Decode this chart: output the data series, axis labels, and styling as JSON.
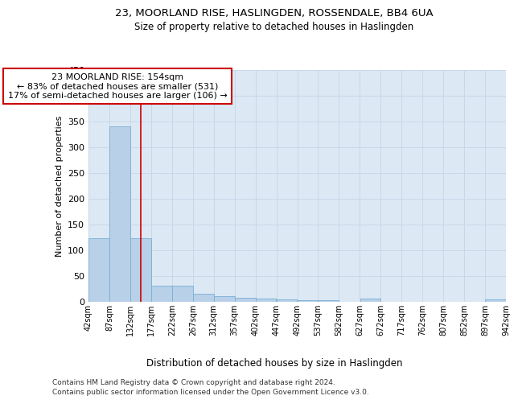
{
  "title1": "23, MOORLAND RISE, HASLINGDEN, ROSSENDALE, BB4 6UA",
  "title2": "Size of property relative to detached houses in Haslingden",
  "xlabel": "Distribution of detached houses by size in Haslingden",
  "ylabel": "Number of detached properties",
  "bin_edges": [
    42,
    87,
    132,
    177,
    222,
    267,
    312,
    357,
    402,
    447,
    492,
    537,
    582,
    627,
    672,
    717,
    762,
    807,
    852,
    897,
    942
  ],
  "bar_heights": [
    123,
    340,
    123,
    30,
    30,
    15,
    10,
    7,
    5,
    4,
    3,
    3,
    0,
    5,
    0,
    0,
    0,
    0,
    0,
    4
  ],
  "bar_color": "#b8d0e8",
  "bar_edge_color": "#7aafd4",
  "grid_color": "#c8d8e8",
  "background_color": "#dce8f4",
  "vline_x": 154,
  "vline_color": "#cc0000",
  "annotation_text": "23 MOORLAND RISE: 154sqm\n← 83% of detached houses are smaller (531)\n17% of semi-detached houses are larger (106) →",
  "annotation_box_color": "#ffffff",
  "annotation_box_edge": "#cc0000",
  "footer1": "Contains HM Land Registry data © Crown copyright and database right 2024.",
  "footer2": "Contains public sector information licensed under the Open Government Licence v3.0.",
  "ylim": [
    0,
    450
  ],
  "yticks": [
    0,
    50,
    100,
    150,
    200,
    250,
    300,
    350,
    400,
    450
  ],
  "tick_labels": [
    "42sqm",
    "87sqm",
    "132sqm",
    "177sqm",
    "222sqm",
    "267sqm",
    "312sqm",
    "357sqm",
    "402sqm",
    "447sqm",
    "492sqm",
    "537sqm",
    "582sqm",
    "627sqm",
    "672sqm",
    "717sqm",
    "762sqm",
    "807sqm",
    "852sqm",
    "897sqm",
    "942sqm"
  ]
}
